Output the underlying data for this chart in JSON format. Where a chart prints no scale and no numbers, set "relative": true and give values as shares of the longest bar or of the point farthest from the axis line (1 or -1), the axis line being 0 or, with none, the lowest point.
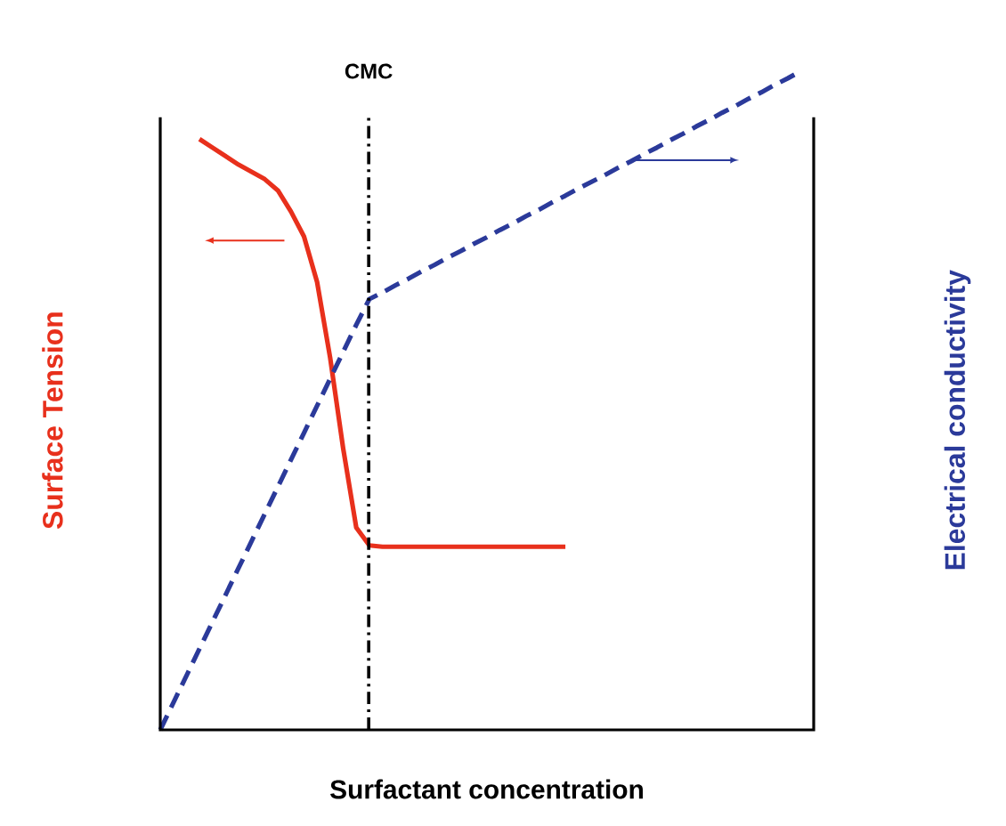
{
  "chart_data": {
    "type": "line",
    "relative": true,
    "xlabel": "Surfactant concentration",
    "ylabel": "Surface Tension",
    "y2label": "Electrical conductivity",
    "annotations": [
      "CMC"
    ],
    "categories": [
      null,
      null,
      null,
      null,
      null,
      null,
      null,
      null,
      null,
      null,
      null,
      null,
      null,
      null,
      null,
      null,
      null,
      null,
      null,
      null,
      null,
      null,
      null,
      null,
      null,
      null,
      null,
      null,
      null,
      null,
      null,
      null,
      null,
      null,
      null,
      null,
      null,
      null,
      null,
      null,
      null,
      null,
      null,
      null,
      null,
      null,
      null,
      null,
      null,
      null
    ],
    "series": [
      {
        "color": "#e8301c",
        "line_style": "solid",
        "values": [
          null,
          null,
          null,
          0.897,
          0.884,
          0.871,
          0.858,
          0.847,
          0.836,
          0.819,
          0.787,
          0.749,
          0.68,
          0.565,
          0.427,
          0.307,
          0.28,
          0.278,
          0.278,
          0.278,
          0.278,
          0.278,
          0.278,
          0.278,
          0.278,
          0.278,
          0.278,
          0.278,
          0.278,
          0.278,
          0.278,
          0.278,
          null,
          null,
          null,
          null,
          null,
          null,
          null,
          null,
          null,
          null,
          null,
          null,
          null,
          null,
          null,
          null,
          null,
          null
        ]
      },
      {
        "color": "#2b3a9a",
        "line_style": "dashed",
        "values": [
          0,
          0.041,
          0.082,
          0.123,
          0.164,
          0.205,
          0.246,
          0.287,
          0.328,
          0.369,
          0.41,
          0.451,
          0.492,
          0.533,
          0.574,
          0.615,
          0.654,
          0.664,
          0.675,
          0.685,
          0.696,
          0.706,
          0.717,
          0.727,
          0.738,
          0.748,
          0.759,
          0.769,
          0.78,
          0.79,
          0.801,
          0.811,
          0.822,
          0.832,
          0.842,
          0.853,
          0.863,
          0.874,
          0.884,
          0.895,
          0.905,
          0.916,
          0.926,
          0.937,
          0.947,
          0.958,
          0.968,
          0.979,
          0.989,
          1
        ]
      }
    ]
  }
}
